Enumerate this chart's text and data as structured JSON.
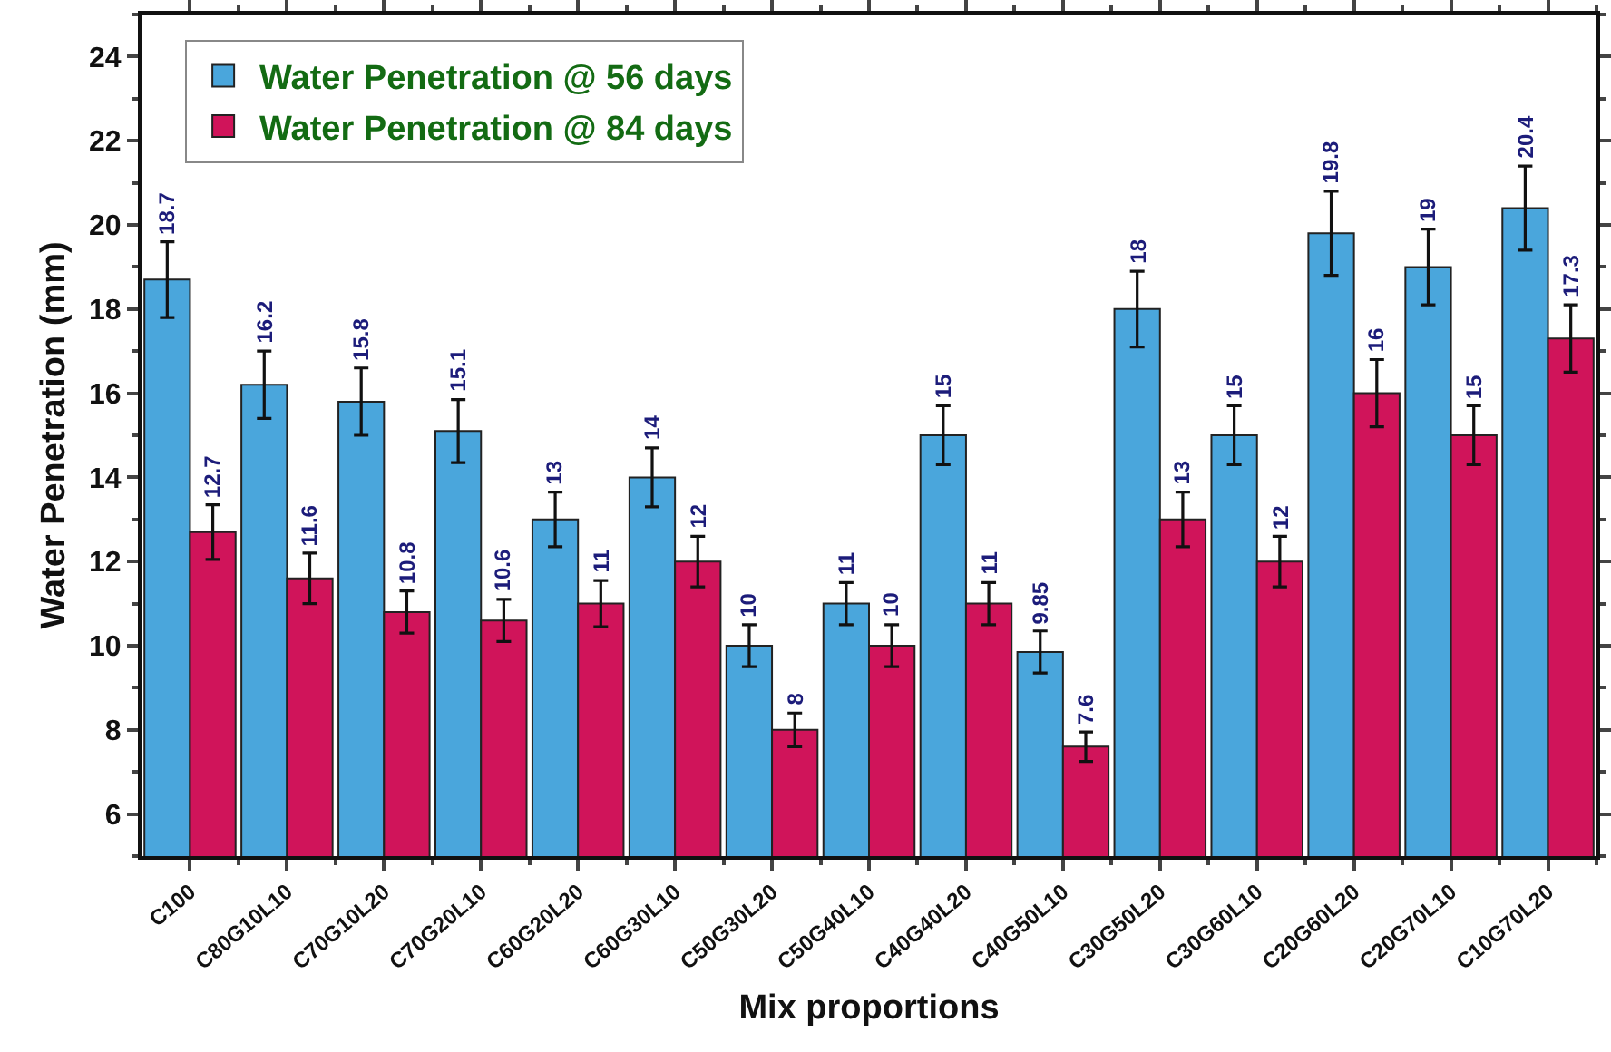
{
  "chart_data": {
    "type": "bar",
    "xlabel": "Mix proportions",
    "ylabel": "Water Penetration (mm)",
    "categories": [
      "C100",
      "C80G10L10",
      "C70G10L20",
      "C70G20L10",
      "C60G20L20",
      "C60G30L10",
      "C50G30L20",
      "C50G40L10",
      "C40G40L20",
      "C40G50L10",
      "C30G50L20",
      "C30G60L10",
      "C20G60L20",
      "C20G70L10",
      "C10G70L20"
    ],
    "series": [
      {
        "name": "Water Penetration @ 56 days",
        "color": "#4aa6dc",
        "values": [
          18.7,
          16.2,
          15.8,
          15.1,
          13,
          14,
          10,
          11,
          15,
          9.85,
          18,
          15,
          19.8,
          19,
          20.4
        ],
        "errors": [
          0.9,
          0.8,
          0.8,
          0.75,
          0.65,
          0.7,
          0.5,
          0.5,
          0.7,
          0.5,
          0.9,
          0.7,
          1.0,
          0.9,
          1.0
        ]
      },
      {
        "name": "Water Penetration @ 84 days",
        "color": "#d0145a",
        "values": [
          12.7,
          11.6,
          10.8,
          10.6,
          11,
          12,
          8,
          10,
          11,
          7.6,
          13,
          12,
          16,
          15,
          17.3
        ],
        "errors": [
          0.65,
          0.6,
          0.5,
          0.5,
          0.55,
          0.6,
          0.4,
          0.5,
          0.5,
          0.35,
          0.65,
          0.6,
          0.8,
          0.7,
          0.8
        ]
      }
    ],
    "ylim": [
      5,
      25
    ],
    "yticks": [
      6,
      8,
      10,
      12,
      14,
      16,
      18,
      20,
      22,
      24
    ],
    "grid": false,
    "legend": "top left",
    "data_labels": true
  }
}
